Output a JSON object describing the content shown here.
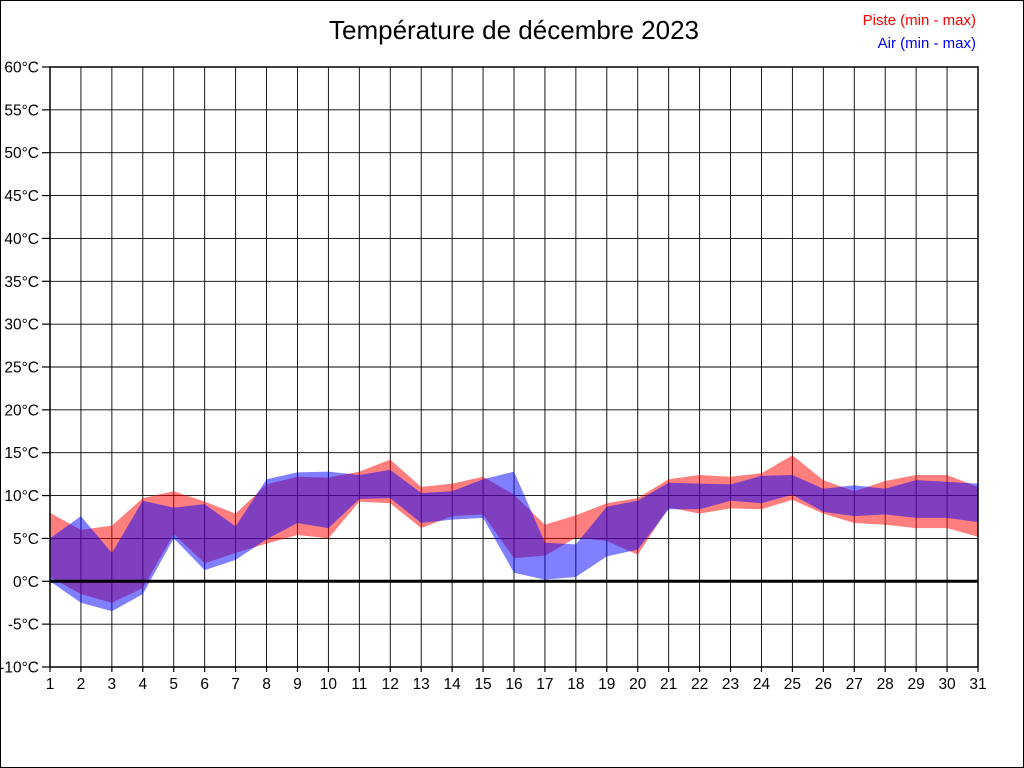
{
  "title": "Température de décembre 2023",
  "legend": [
    {
      "label": "Piste (min - max)",
      "color": "#ff0000"
    },
    {
      "label": "Air (min - max)",
      "color": "#0000ff"
    }
  ],
  "chart_data": {
    "type": "area",
    "subtype": "min-max bands",
    "title": "Température de décembre 2023",
    "xlabel": "",
    "ylabel": "",
    "x": [
      1,
      2,
      3,
      4,
      5,
      6,
      7,
      8,
      9,
      10,
      11,
      12,
      13,
      14,
      15,
      16,
      17,
      18,
      19,
      20,
      21,
      22,
      23,
      24,
      25,
      26,
      27,
      28,
      29,
      30,
      31
    ],
    "x_tick_labels": [
      "1",
      "2",
      "3",
      "4",
      "5",
      "6",
      "7",
      "8",
      "9",
      "10",
      "11",
      "12",
      "13",
      "14",
      "15",
      "16",
      "17",
      "18",
      "19",
      "20",
      "21",
      "22",
      "23",
      "24",
      "25",
      "26",
      "27",
      "28",
      "29",
      "30",
      "31"
    ],
    "y_ticks": [
      -10,
      -5,
      0,
      5,
      10,
      15,
      20,
      25,
      30,
      35,
      40,
      45,
      50,
      55,
      60
    ],
    "y_tick_labels": [
      "-10°C",
      "-5°C",
      "0°C",
      "5°C",
      "10°C",
      "15°C",
      "20°C",
      "25°C",
      "30°C",
      "35°C",
      "40°C",
      "45°C",
      "50°C",
      "55°C",
      "60°C"
    ],
    "ylim": [
      -10,
      60
    ],
    "grid": true,
    "zero_line": true,
    "legend_position": "top-right",
    "series": [
      {
        "name": "Piste (min - max)",
        "color": "#ff0000",
        "opacity": 0.5,
        "min": [
          0.5,
          -1.5,
          -2.5,
          -0.8,
          5.5,
          2.1,
          3.3,
          4.4,
          5.4,
          5.0,
          9.3,
          9.1,
          6.2,
          7.6,
          7.8,
          2.7,
          3.0,
          5.1,
          4.7,
          3.1,
          8.6,
          7.9,
          8.5,
          8.4,
          9.5,
          7.9,
          6.8,
          6.6,
          6.2,
          6.2,
          5.2
        ],
        "max": [
          8.0,
          6.0,
          6.5,
          9.7,
          10.5,
          9.3,
          7.9,
          11.3,
          12.2,
          12.1,
          12.8,
          14.2,
          11.0,
          11.4,
          12.2,
          10.1,
          6.6,
          7.7,
          9.1,
          9.7,
          11.9,
          12.4,
          12.2,
          12.6,
          14.7,
          11.8,
          10.5,
          11.7,
          12.4,
          12.4,
          11.0
        ]
      },
      {
        "name": "Air (min - max)",
        "color": "#0000ff",
        "opacity": 0.5,
        "min": [
          0.0,
          -2.5,
          -3.5,
          -1.5,
          5.0,
          1.3,
          2.5,
          4.9,
          6.8,
          6.2,
          9.6,
          9.7,
          6.8,
          7.2,
          7.4,
          1.0,
          0.2,
          0.5,
          2.9,
          3.7,
          8.4,
          8.4,
          9.4,
          9.1,
          10.1,
          8.1,
          7.6,
          7.8,
          7.4,
          7.4,
          6.9
        ],
        "max": [
          5.0,
          7.6,
          3.3,
          9.4,
          8.6,
          9.0,
          6.4,
          11.9,
          12.7,
          12.8,
          12.4,
          13.0,
          10.3,
          10.5,
          11.9,
          12.8,
          4.5,
          4.3,
          8.7,
          9.4,
          11.5,
          11.4,
          11.3,
          12.3,
          12.4,
          10.8,
          11.2,
          10.8,
          11.8,
          11.6,
          11.4
        ]
      }
    ]
  }
}
